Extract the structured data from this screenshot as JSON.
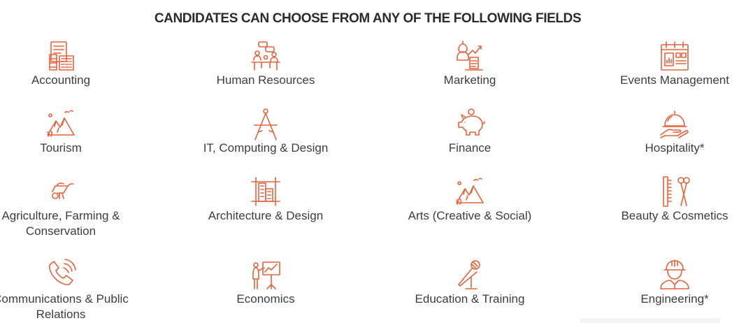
{
  "heading": "CANDIDATES CAN CHOOSE FROM ANY OF THE FOLLOWING FIELDS",
  "accent_color": "#e8613a",
  "fields": [
    {
      "label_lines": [
        "Accounting"
      ],
      "icon": "accounting-icon"
    },
    {
      "label_lines": [
        "Human Resources"
      ],
      "icon": "human-resources-icon"
    },
    {
      "label_lines": [
        "Marketing"
      ],
      "icon": "marketing-icon"
    },
    {
      "label_lines": [
        "Events Management"
      ],
      "icon": "events-calendar-icon"
    },
    {
      "label_lines": [
        "Tourism"
      ],
      "icon": "mountains-icon"
    },
    {
      "label_lines": [
        "IT, Computing & Design"
      ],
      "icon": "compass-icon"
    },
    {
      "label_lines": [
        "Finance"
      ],
      "icon": "piggy-bank-icon"
    },
    {
      "label_lines": [
        "Hospitality*"
      ],
      "icon": "cloche-icon"
    },
    {
      "label_lines": [
        "Agriculture, Farming &",
        "Conservation"
      ],
      "icon": "wheelbarrow-icon"
    },
    {
      "label_lines": [
        "Architecture & Design"
      ],
      "icon": "building-plan-icon"
    },
    {
      "label_lines": [
        "Arts (Creative & Social)"
      ],
      "icon": "landscape-icon"
    },
    {
      "label_lines": [
        "Beauty & Cosmetics"
      ],
      "icon": "comb-scissors-icon"
    },
    {
      "label_lines": [
        "Communications & Public",
        "Relations"
      ],
      "icon": "phone-icon"
    },
    {
      "label_lines": [
        "Economics"
      ],
      "icon": "presentation-icon"
    },
    {
      "label_lines": [
        "Education & Training"
      ],
      "icon": "microphone-icon"
    },
    {
      "label_lines": [
        "Engineering*"
      ],
      "icon": "engineer-icon"
    }
  ]
}
